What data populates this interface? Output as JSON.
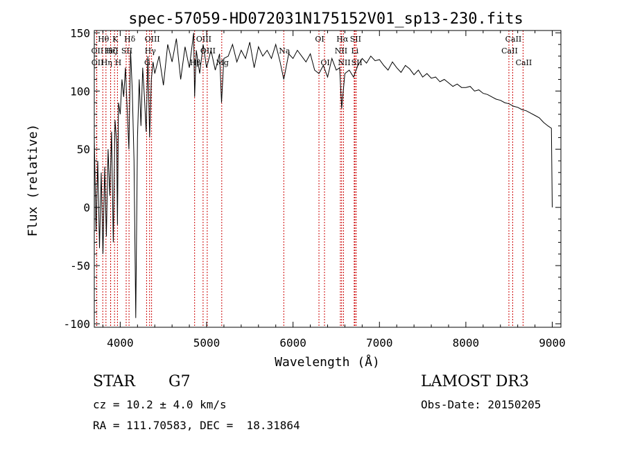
{
  "chart_data": {
    "type": "line",
    "title": "spec-57059-HD072031N175152V01_sp13-230.fits",
    "xlabel": "Wavelength (Å)",
    "ylabel": "Flux (relative)",
    "xlim": [
      3700,
      9100
    ],
    "ylim": [
      -103,
      152
    ],
    "x_ticks": [
      "4000",
      "5000",
      "6000",
      "7000",
      "8000",
      "9000"
    ],
    "y_ticks": [
      "-100",
      "-50",
      "0",
      "50",
      "100",
      "150"
    ],
    "x_tick_values": [
      4000,
      5000,
      6000,
      7000,
      8000,
      9000
    ],
    "y_tick_values": [
      -100,
      -50,
      0,
      50,
      100,
      150
    ],
    "series": [
      {
        "name": "flux",
        "x": [
          3700,
          3720,
          3740,
          3760,
          3780,
          3800,
          3820,
          3840,
          3860,
          3880,
          3900,
          3920,
          3940,
          3960,
          3968,
          3980,
          4000,
          4020,
          4040,
          4060,
          4080,
          4100,
          4120,
          4140,
          4160,
          4180,
          4200,
          4220,
          4240,
          4260,
          4280,
          4300,
          4320,
          4340,
          4360,
          4380,
          4400,
          4450,
          4500,
          4550,
          4600,
          4650,
          4700,
          4750,
          4800,
          4850,
          4861,
          4880,
          4920,
          4960,
          5000,
          5050,
          5100,
          5150,
          5172,
          5200,
          5250,
          5300,
          5350,
          5400,
          5450,
          5500,
          5550,
          5600,
          5650,
          5700,
          5750,
          5800,
          5850,
          5893,
          5950,
          6000,
          6050,
          6100,
          6150,
          6200,
          6250,
          6300,
          6350,
          6400,
          6450,
          6500,
          6540,
          6563,
          6600,
          6650,
          6700,
          6750,
          6800,
          6850,
          6900,
          6950,
          7000,
          7050,
          7100,
          7150,
          7200,
          7250,
          7300,
          7350,
          7400,
          7450,
          7500,
          7550,
          7600,
          7650,
          7700,
          7750,
          7800,
          7850,
          7900,
          7950,
          8000,
          8050,
          8100,
          8150,
          8200,
          8250,
          8300,
          8350,
          8400,
          8450,
          8500,
          8550,
          8600,
          8650,
          8700,
          8750,
          8800,
          8850,
          8900,
          8950,
          8990,
          9000
        ],
        "y": [
          60,
          -20,
          40,
          -35,
          30,
          -40,
          35,
          -25,
          50,
          10,
          65,
          -30,
          75,
          55,
          -15,
          90,
          80,
          110,
          95,
          120,
          85,
          50,
          135,
          100,
          40,
          -95,
          60,
          110,
          70,
          120,
          95,
          65,
          130,
          60,
          110,
          125,
          115,
          130,
          105,
          140,
          125,
          145,
          110,
          138,
          120,
          150,
          95,
          135,
          115,
          140,
          120,
          135,
          118,
          132,
          90,
          128,
          130,
          140,
          125,
          135,
          128,
          142,
          120,
          138,
          130,
          135,
          128,
          140,
          125,
          110,
          132,
          128,
          135,
          130,
          125,
          132,
          118,
          115,
          122,
          112,
          128,
          118,
          120,
          85,
          115,
          118,
          112,
          122,
          128,
          124,
          130,
          126,
          127,
          122,
          118,
          125,
          120,
          116,
          122,
          119,
          114,
          118,
          112,
          115,
          111,
          112,
          108,
          110,
          107,
          104,
          106,
          103,
          103,
          104,
          100,
          101,
          98,
          97,
          95,
          93,
          92,
          90,
          89,
          87,
          86,
          84,
          83,
          81,
          79,
          77,
          73,
          70,
          68,
          0
        ]
      }
    ],
    "lines": [
      {
        "name": "Hθ",
        "x": 3798,
        "row": 0
      },
      {
        "name": "Hη",
        "x": 3835,
        "row": 2
      },
      {
        "name": "OII",
        "x": 3727,
        "row": 1
      },
      {
        "name": "OII",
        "x": 3729,
        "row": 2
      },
      {
        "name": "Hζ",
        "x": 3889,
        "row": 1
      },
      {
        "name": "K",
        "x": 3934,
        "row": 0
      },
      {
        "name": "H",
        "x": 3968,
        "row": 2
      },
      {
        "name": "HeI",
        "x": 3889,
        "row": 1
      },
      {
        "name": "SII",
        "x": 4069,
        "row": 1
      },
      {
        "name": "Hδ",
        "x": 4102,
        "row": 0
      },
      {
        "name": "OIII",
        "x": 4363,
        "row": 0
      },
      {
        "name": "Hγ",
        "x": 4340,
        "row": 1
      },
      {
        "name": "G",
        "x": 4305,
        "row": 2
      },
      {
        "name": "OIII",
        "x": 4959,
        "row": 0
      },
      {
        "name": "OIII",
        "x": 5007,
        "row": 1
      },
      {
        "name": "Hβ",
        "x": 4861,
        "row": 2
      },
      {
        "name": "Mg",
        "x": 5175,
        "row": 2
      },
      {
        "name": "Na",
        "x": 5893,
        "row": 1
      },
      {
        "name": "OI",
        "x": 6300,
        "row": 0
      },
      {
        "name": "OI",
        "x": 6364,
        "row": 2
      },
      {
        "name": "Hα",
        "x": 6563,
        "row": 0
      },
      {
        "name": "NII",
        "x": 6548,
        "row": 1
      },
      {
        "name": "NII",
        "x": 6584,
        "row": 2
      },
      {
        "name": "SII",
        "x": 6716,
        "row": 0
      },
      {
        "name": "Li",
        "x": 6708,
        "row": 1
      },
      {
        "name": "SII",
        "x": 6731,
        "row": 2
      },
      {
        "name": "CaII",
        "x": 8542,
        "row": 0
      },
      {
        "name": "CaII",
        "x": 8498,
        "row": 1
      },
      {
        "name": "CaII",
        "x": 8662,
        "row": 2
      }
    ]
  },
  "info": {
    "object_type": "STAR",
    "subclass": "G7",
    "cz": "cz = 10.2 ± 4.0 km/s",
    "coords": "RA = 111.70583, DEC =  18.31864",
    "survey": "LAMOST DR3",
    "obs_date": "Obs-Date: 20150205"
  }
}
